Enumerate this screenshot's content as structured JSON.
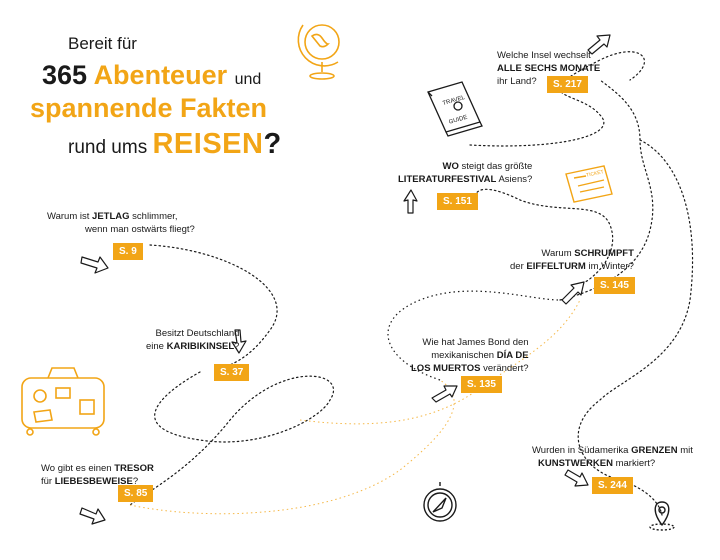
{
  "headline": {
    "line1": "Bereit für",
    "line2_number": "365",
    "line2_word": "Abenteuer",
    "line2_tail": "und",
    "line3": "spannende Fakten",
    "line4_pre": "rund ums",
    "line4_word": "REISEN",
    "line4_mark": "?"
  },
  "questions": [
    {
      "id": "jetlag",
      "l1_pre": "Warum ist ",
      "l1_bold": "JETLAG",
      "l1_post": " schlimmer,",
      "l2": "wenn man ostwärts fliegt?",
      "page": "S. 9"
    },
    {
      "id": "karibik",
      "l1": "Besitzt Deutschland",
      "l2_pre": "eine ",
      "l2_bold": "KARIBIKINSEL",
      "l2_post": "?",
      "page": "S. 37"
    },
    {
      "id": "tresor",
      "l1_pre": "Wo gibt es einen ",
      "l1_bold": "TRESOR",
      "l2_pre": "für ",
      "l2_bold": "LIEBESBEWEISE",
      "l2_post": "?",
      "page": "S. 85"
    },
    {
      "id": "insel",
      "l1": "Welche Insel wechselt",
      "l2_bold": "ALLE SECHS MONATE",
      "l3": "ihr Land?",
      "page": "S. 217"
    },
    {
      "id": "literatur",
      "l1_bold": "WO",
      "l1_post": " steigt das größte",
      "l2_bold": "LITERATURFESTIVAL",
      "l2_post": " Asiens?",
      "page": "S. 151"
    },
    {
      "id": "eiffel",
      "l1_pre": "Warum ",
      "l1_bold": "SCHRUMPFT",
      "l2_pre": "der ",
      "l2_bold": "EIFFELTURM",
      "l2_post": " im Winter?",
      "page": "S. 145"
    },
    {
      "id": "bond",
      "l1": "Wie hat James Bond den",
      "l2_pre": "mexikanischen ",
      "l2_bold": "DÍA DE",
      "l3_bold": "LOS MUERTOS",
      "l3_post": " verändert?",
      "page": "S. 135"
    },
    {
      "id": "grenzen",
      "l1_pre": "Wurden in Südamerika ",
      "l1_bold": "GRENZEN",
      "l1_post": " mit",
      "l2_bold": "KUNSTWERKEN",
      "l2_post": " markiert?",
      "page": "S. 244"
    }
  ],
  "illustrations": {
    "guide_text_1": "TRAVEL",
    "guide_text_2": "GUIDE",
    "ticket_text": "TICKET"
  },
  "colors": {
    "accent": "#f2a516",
    "ink": "#1a1a1a"
  },
  "icons": [
    "globe-icon",
    "travel-guide-icon",
    "ticket-icon",
    "suitcase-icon",
    "compass-icon",
    "location-pin-icon",
    "arrow-icon"
  ]
}
